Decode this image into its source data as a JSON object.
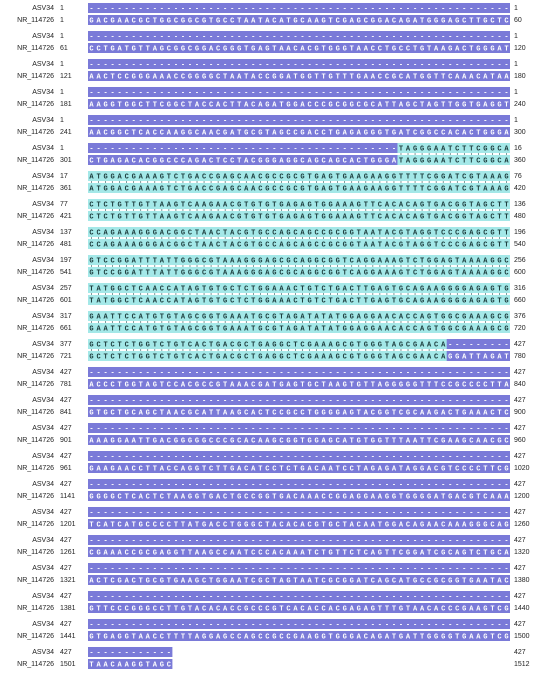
{
  "alignment": {
    "blocks": [
      {
        "query": {
          "name": "ASV34",
          "start": "1",
          "seq": "------------------------------------------------------------",
          "end": "1"
        },
        "subject": {
          "name": "NR_114726",
          "start": "1",
          "seq": "GACGAACGCTGGCGGCGTGCCTAATACATGCAAGTCGAGCGGACAGATGGGAGCTTGCTC",
          "end": "60"
        }
      },
      {
        "query": {
          "name": "ASV34",
          "start": "1",
          "seq": "------------------------------------------------------------",
          "end": "1"
        },
        "subject": {
          "name": "NR_114726",
          "start": "61",
          "seq": "CCTGATGTTAGCGGCGGACGGGTGAGTAACACGTGGGTAACCTGCCTGTAAGACTGGGAT",
          "end": "120"
        }
      },
      {
        "query": {
          "name": "ASV34",
          "start": "1",
          "seq": "------------------------------------------------------------",
          "end": "1"
        },
        "subject": {
          "name": "NR_114726",
          "start": "121",
          "seq": "AACTCCGGGAAACCGGGGCTAATACCGGATGGTTGTTTGAACCGCATGGTTCAAACATAA",
          "end": "180"
        }
      },
      {
        "query": {
          "name": "ASV34",
          "start": "1",
          "seq": "------------------------------------------------------------",
          "end": "1"
        },
        "subject": {
          "name": "NR_114726",
          "start": "181",
          "seq": "AAGGTGGCTTCGGCTACCACTTACAGATGGACCCGCGGCGCATTAGCTAGTTGGTGAGGT",
          "end": "240"
        }
      },
      {
        "query": {
          "name": "ASV34",
          "start": "1",
          "seq": "------------------------------------------------------------",
          "end": "1"
        },
        "subject": {
          "name": "NR_114726",
          "start": "241",
          "seq": "AACGGCTCACCAAGGCAACGATGCGTAGCCGACCTGAGAGGGTGATCGGCCACACTGGGA",
          "end": "300"
        }
      },
      {
        "query": {
          "name": "ASV34",
          "start": "1",
          "seq": "--------------------------------------------TAGGGAATCTTCGGCA",
          "end": "16"
        },
        "subject": {
          "name": "NR_114726",
          "start": "301",
          "seq": "CTGAGACACGGCCCAGACTCCTACGGGAGGCAGCAGCACTGGGATAGGGAATCTTCGGCA",
          "end": "360"
        }
      },
      {
        "query": {
          "name": "ASV34",
          "start": "17",
          "seq": "ATGGACGAAAGTCTGACCGAGCAACGCCGCGTGAGTGAAGAAGGTTTTCGGATCGTAAAG",
          "end": "76"
        },
        "subject": {
          "name": "NR_114726",
          "start": "361",
          "seq": "ATGGACGAAAGTCTGACCGAGCAACGCCGCGTGAGTGAAGAAGGTTTTCGGATCGTAAAG",
          "end": "420"
        }
      },
      {
        "query": {
          "name": "ASV34",
          "start": "77",
          "seq": "CTCTGTTGTTAAGTCAAGAACGTGTGTGAGAGTGGAAAGTTCACACAGTGACGGTAGCTT",
          "end": "136"
        },
        "subject": {
          "name": "NR_114726",
          "start": "421",
          "seq": "CTCTGTTGTTAAGTCAAGAACGTGTGTGAGAGTGGAAAGTTCACACAGTGACGGTAGCTT",
          "end": "480"
        }
      },
      {
        "query": {
          "name": "ASV34",
          "start": "137",
          "seq": "CCAGAAAGGGACGGCTAACTACGTGCCAGCAGCCGCGGTAATACGTAGGTCCCGAGCGTT",
          "end": "196"
        },
        "subject": {
          "name": "NR_114726",
          "start": "481",
          "seq": "CCAGAAAGGGACGGCTAACTACGTGCCAGCAGCCGCGGTAATACGTAGGTCCCGAGCGTT",
          "end": "540"
        }
      },
      {
        "query": {
          "name": "ASV34",
          "start": "197",
          "seq": "GTCCGGATTTATTGGGCGTAAAGGGAGCGCAGGCGGTCAGGAAAGTCTGGAGTAAAAGGC",
          "end": "256"
        },
        "subject": {
          "name": "NR_114726",
          "start": "541",
          "seq": "GTCCGGATTTATTGGGCGTAAAGGGAGCGCAGGCGGTCAGGAAAGTCTGGAGTAAAAGGC",
          "end": "600"
        }
      },
      {
        "query": {
          "name": "ASV34",
          "start": "257",
          "seq": "TATGGCTCAACCATAGTGTGCTCTGGAAACTGTCTGACTTGAGTGCAGAAGGGGAGAGTG",
          "end": "316"
        },
        "subject": {
          "name": "NR_114726",
          "start": "601",
          "seq": "TATGGCTCAACCATAGTGTGCTCTGGAAACTGTCTGACTTGAGTGCAGAAGGGGAGAGTG",
          "end": "660"
        }
      },
      {
        "query": {
          "name": "ASV34",
          "start": "317",
          "seq": "GAATTCCATGTGTAGCGGTGAAATGCGTAGATATATGGAGGAACACCAGTGGCGAAAGCG",
          "end": "376"
        },
        "subject": {
          "name": "NR_114726",
          "start": "661",
          "seq": "GAATTCCATGTGTAGCGGTGAAATGCGTAGATATATGGAGGAACACCAGTGGCGAAAGCG",
          "end": "720"
        }
      },
      {
        "query": {
          "name": "ASV34",
          "start": "377",
          "seq": "GCTCTCTGGTCTGTCACTGACGCTGAGGCTCGAAAGCGTGGGTAGCGAACA---------",
          "end": "427"
        },
        "subject": {
          "name": "NR_114726",
          "start": "721",
          "seq": "GCTCTCTGGTCTGTCACTGACGCTGAGGCTCGAAAGCGTGGGTAGCGAACAGGATTAGAT",
          "end": "780"
        }
      },
      {
        "query": {
          "name": "ASV34",
          "start": "427",
          "seq": "------------------------------------------------------------",
          "end": "427"
        },
        "subject": {
          "name": "NR_114726",
          "start": "781",
          "seq": "ACCCTGGTAGTCCACGCCGTAAACGATGAGTGCTAAGTGTTAGGGGGTTTCCGCCCCTTA",
          "end": "840"
        }
      },
      {
        "query": {
          "name": "ASV34",
          "start": "427",
          "seq": "------------------------------------------------------------",
          "end": "427"
        },
        "subject": {
          "name": "NR_114726",
          "start": "841",
          "seq": "GTGCTGCAGCTAACGCATTAAGCACTCCGCCTGGGGAGTACGGTCGCAAGACTGAAACTC",
          "end": "900"
        }
      },
      {
        "query": {
          "name": "ASV34",
          "start": "427",
          "seq": "------------------------------------------------------------",
          "end": "427"
        },
        "subject": {
          "name": "NR_114726",
          "start": "901",
          "seq": "AAAGGAATTGACGGGGGCCCGCACAAGCGGTGGAGCATGTGGTTTAATTCGAAGCAACGC",
          "end": "960"
        }
      },
      {
        "query": {
          "name": "ASV34",
          "start": "427",
          "seq": "------------------------------------------------------------",
          "end": "427"
        },
        "subject": {
          "name": "NR_114726",
          "start": "961",
          "seq": "GAAGAACCTTACCAGGTCTTGACATCCTCTGACAATCCTAGAGATAGGACGTCCCCTTCG",
          "end": "1020"
        }
      },
      {
        "query": {
          "name": "ASV34",
          "start": "427",
          "seq": "------------------------------------------------------------",
          "end": "427"
        },
        "subject": {
          "name": "NR_114726",
          "start": "1141",
          "seq": "GGGGCTCACTCTAAGGTGACTGCCGGTGACAAACCGGAGGAAGGTGGGGATGACGTCAAA",
          "end": "1200"
        }
      },
      {
        "query": {
          "name": "ASV34",
          "start": "427",
          "seq": "------------------------------------------------------------",
          "end": "427"
        },
        "subject": {
          "name": "NR_114726",
          "start": "1201",
          "seq": "TCATCATGCCCCTTATGACCTGGGCTACACACGTGCTACAATGGACAGAACAAAGGGCAG",
          "end": "1260"
        }
      },
      {
        "query": {
          "name": "ASV34",
          "start": "427",
          "seq": "------------------------------------------------------------",
          "end": "427"
        },
        "subject": {
          "name": "NR_114726",
          "start": "1261",
          "seq": "CGAAACCGCGAGGTTAAGCCAATCCCACAAATCTGTTCTCAGTTCGGATCGCAGTCTGCA",
          "end": "1320"
        }
      },
      {
        "query": {
          "name": "ASV34",
          "start": "427",
          "seq": "------------------------------------------------------------",
          "end": "427"
        },
        "subject": {
          "name": "NR_114726",
          "start": "1321",
          "seq": "ACTCGACTGCGTGAAGCTGGAATCGCTAGTAATCGCGGATCAGCATGCCGCGGTGAATAC",
          "end": "1380"
        }
      },
      {
        "query": {
          "name": "ASV34",
          "start": "427",
          "seq": "------------------------------------------------------------",
          "end": "427"
        },
        "subject": {
          "name": "NR_114726",
          "start": "1381",
          "seq": "GTTCCCGGGCCTTGTACACACCGCCCGTCACACCACGAGAGTTTGTAACACCCGAAGTCG",
          "end": "1440"
        }
      },
      {
        "query": {
          "name": "ASV34",
          "start": "427",
          "seq": "------------------------------------------------------------",
          "end": "427"
        },
        "subject": {
          "name": "NR_114726",
          "start": "1441",
          "seq": "GTGAGGTAACCTTTTAGGAGCCAGCCGCCGAAGGTGGGACAGATGATTGGGGTGAAGTCG",
          "end": "1500"
        }
      },
      {
        "query": {
          "name": "ASV34",
          "start": "427",
          "seq": "------------",
          "end": "427"
        },
        "subject": {
          "name": "NR_114726",
          "start": "1501",
          "seq": "TAACAAGGTAGC",
          "end": "1512"
        }
      }
    ]
  }
}
